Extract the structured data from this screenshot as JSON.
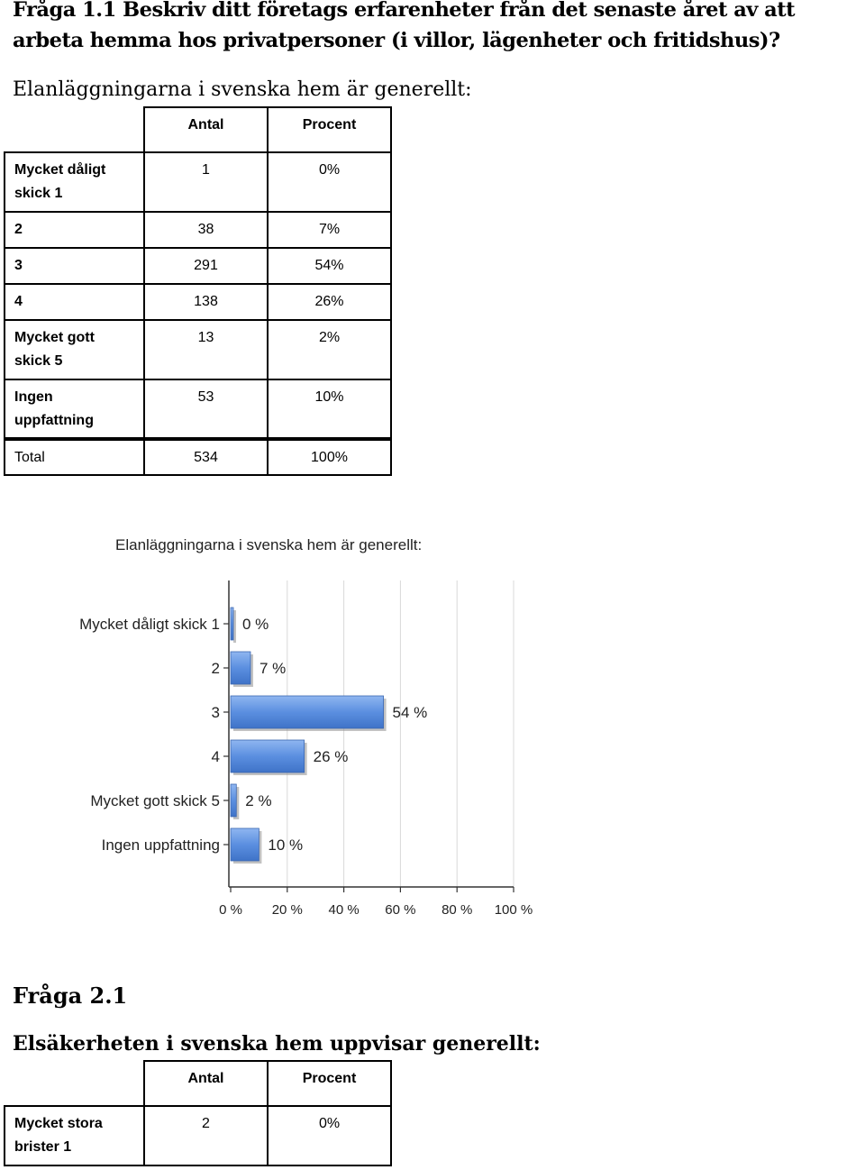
{
  "question1": {
    "heading": "Fråga 1.1 Beskriv ditt företags erfarenheter från det senaste året av att arbeta hemma hos privatpersoner (i villor, lägenheter och fritidshus)?",
    "subheading": "Elanläggningarna i svenska hem är generellt:",
    "table": {
      "col_antal": "Antal",
      "col_procent": "Procent",
      "rows": [
        {
          "label_line1": "Mycket dåligt",
          "label_line2": "skick  1",
          "antal": "1",
          "procent": "0%"
        },
        {
          "label_line1": "2",
          "label_line2": "",
          "antal": "38",
          "procent": "7%"
        },
        {
          "label_line1": "3",
          "label_line2": "",
          "antal": "291",
          "procent": "54%"
        },
        {
          "label_line1": "4",
          "label_line2": "",
          "antal": "138",
          "procent": "26%"
        },
        {
          "label_line1": "Mycket gott",
          "label_line2": "skick  5",
          "antal": "13",
          "procent": "2%"
        },
        {
          "label_line1": "Ingen",
          "label_line2": "uppfattning",
          "antal": "53",
          "procent": "10%"
        }
      ],
      "total": {
        "label": "Total",
        "antal": "534",
        "procent": "100%"
      }
    }
  },
  "chart_data": {
    "type": "bar",
    "orientation": "horizontal",
    "title": "Elanläggningarna i svenska hem är generellt:",
    "categories": [
      "Mycket dåligt  skick  1",
      "2",
      "3",
      "4",
      "Mycket gott skick  5",
      "Ingen uppfattning"
    ],
    "values": [
      0,
      7,
      54,
      26,
      2,
      10
    ],
    "value_labels": [
      "0 %",
      "7 %",
      "54 %",
      "26 %",
      "2 %",
      "10 %"
    ],
    "xlim": [
      0,
      100
    ],
    "xticks": [
      0,
      20,
      40,
      60,
      80,
      100
    ],
    "xtick_labels": [
      "0 %",
      "20 %",
      "40 %",
      "60 %",
      "80 %",
      "100 %"
    ],
    "grid": true,
    "bar_color": "#5b8fe0",
    "xlabel": "",
    "ylabel": ""
  },
  "question2": {
    "heading": "Fråga 2.1",
    "subheading": "Elsäkerheten i svenska hem uppvisar generellt:",
    "table": {
      "col_antal": "Antal",
      "col_procent": "Procent",
      "rows": [
        {
          "label_line1": "Mycket stora",
          "label_line2": "brister  1",
          "antal": "2",
          "procent": "0%"
        }
      ]
    }
  }
}
